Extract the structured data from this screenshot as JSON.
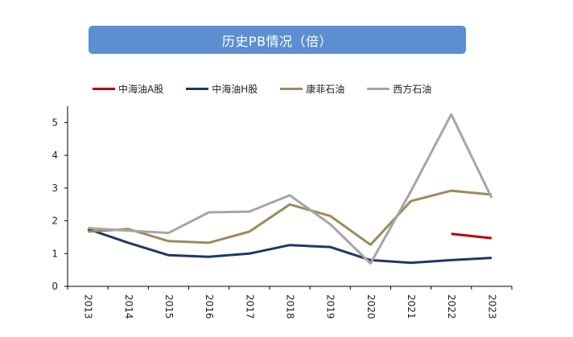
{
  "chart_data": {
    "type": "line",
    "title": "历史PB情况（倍）",
    "categories": [
      "2013",
      "2014",
      "2015",
      "2016",
      "2017",
      "2018",
      "2019",
      "2020",
      "2021",
      "2022",
      "2023"
    ],
    "ylim": [
      0,
      5.5
    ],
    "yticks": [
      0,
      1,
      2,
      3,
      4,
      5
    ],
    "grid": false,
    "legend_position": "top",
    "series": [
      {
        "name": "中海油A股",
        "color": "#c00000",
        "values": [
          null,
          null,
          null,
          null,
          null,
          null,
          null,
          null,
          null,
          1.6,
          1.47
        ]
      },
      {
        "name": "中海油H股",
        "color": "#1f3864",
        "values": [
          1.75,
          1.33,
          0.95,
          0.9,
          1.0,
          1.26,
          1.2,
          0.8,
          0.72,
          0.8,
          0.87
        ]
      },
      {
        "name": "康菲石油",
        "color": "#9c8b5a",
        "values": [
          1.67,
          1.75,
          1.38,
          1.33,
          1.67,
          2.5,
          2.15,
          1.27,
          2.6,
          2.92,
          2.8
        ]
      },
      {
        "name": "西方石油",
        "color": "#a6a6a6",
        "values": [
          1.78,
          1.7,
          1.63,
          2.26,
          2.28,
          2.78,
          1.9,
          0.7,
          2.9,
          5.25,
          2.7
        ]
      }
    ]
  }
}
